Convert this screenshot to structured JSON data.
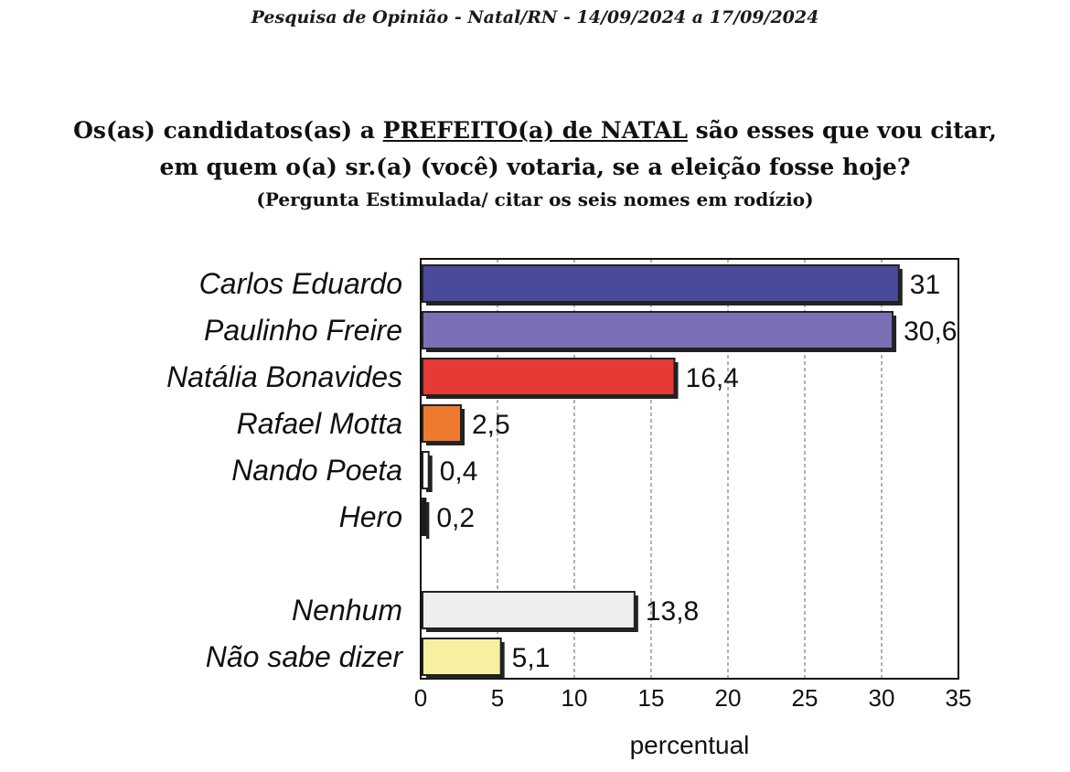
{
  "header": "Pesquisa de Opinião  -  Natal/RN  - 14/09/2024  a  17/09/2024",
  "question": {
    "line1_pre": "Os(as) candidatos(as) a ",
    "line1_underlined": "PREFEITO(a) de NATAL",
    "line1_post": " são esses que vou citar,",
    "line2": "em quem o(a) sr.(a) (você) votaria, se a eleição fosse hoje?",
    "line3": "(Pergunta Estimulada/ citar os seis nomes em rodízio)"
  },
  "chart_data": {
    "type": "bar",
    "orientation": "horizontal",
    "categories": [
      "Carlos Eduardo",
      "Paulinho Freire",
      "Natália Bonavides",
      "Rafael Motta",
      "Nando Poeta",
      "Hero",
      "Nenhum",
      "Não sabe dizer"
    ],
    "values": [
      31,
      30.6,
      16.4,
      2.5,
      0.4,
      0.2,
      13.8,
      5.1
    ],
    "value_labels": [
      "31",
      "30,6",
      "16,4",
      "2,5",
      "0,4",
      "0,2",
      "13,8",
      "5,1"
    ],
    "colors": [
      "#4a4a9c",
      "#7b70b5",
      "#e53a35",
      "#ee7a30",
      "#ffffff",
      "#111111",
      "#eeeeee",
      "#f7f0a0"
    ],
    "xlabel": "percentual",
    "xlim": [
      0,
      35
    ],
    "xticks": [
      0,
      5,
      10,
      15,
      20,
      25,
      30,
      35
    ],
    "grid": true,
    "gap_before_index": 6
  }
}
